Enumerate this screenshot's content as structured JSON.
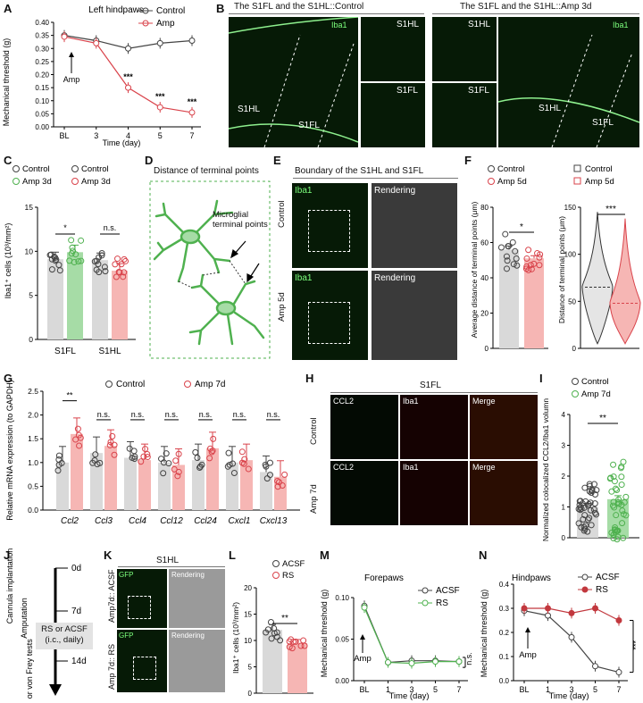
{
  "panels": {
    "A": "A",
    "B": "B",
    "C": "C",
    "D": "D",
    "E": "E",
    "F": "F",
    "G": "G",
    "H": "H",
    "I": "I",
    "J": "J",
    "K": "K",
    "L": "L",
    "M": "M",
    "N": "N"
  },
  "colors": {
    "control": "#444444",
    "amp": "#d9434b",
    "amp_light": "#f6b6b4",
    "green": "#4fb14f",
    "green_light": "#a6dca6",
    "grey_bar": "#d9d9d9"
  },
  "A": {
    "title": "Left hindpaws",
    "ylabel": "Mechanical threshold (g)",
    "xlabel": "Time (day)",
    "legend": [
      "Control",
      "Amp"
    ],
    "arrow_label": "Amp",
    "sig": [
      "***",
      "***",
      "***"
    ],
    "chart_data": {
      "type": "line",
      "categories": [
        "BL",
        "3",
        "4",
        "5",
        "7"
      ],
      "ylim": [
        0,
        0.4
      ],
      "yticks": [
        "0.00",
        "0.05",
        "0.10",
        "0.15",
        "0.20",
        "0.25",
        "0.30",
        "0.35",
        "0.40"
      ],
      "series": [
        {
          "name": "Control",
          "values": [
            0.35,
            0.33,
            0.3,
            0.32,
            0.33
          ]
        },
        {
          "name": "Amp",
          "values": [
            0.345,
            0.32,
            0.15,
            0.075,
            0.055
          ]
        }
      ]
    }
  },
  "B": {
    "title_left": "The S1FL and  the S1HL::Control",
    "title_right": "The S1FL and  the S1HL::Amp 3d",
    "iba1": "Iba1",
    "s1hl": "S1HL",
    "s1fl": "S1FL"
  },
  "C": {
    "legend": [
      "Control",
      "Amp 3d",
      "Control",
      "Amp 3d"
    ],
    "ylabel": "Iba1⁺ cells (10³/mm²)",
    "sig": [
      "*",
      "n.s."
    ],
    "chart_data": {
      "type": "bar",
      "categories": [
        "S1FL",
        "S1HL"
      ],
      "ylim": [
        0,
        15
      ],
      "yticks": [
        "0",
        "5",
        "10",
        "15"
      ],
      "series": [
        {
          "name": "Control",
          "values": [
            9.1,
            9.0
          ]
        },
        {
          "name": "Amp 3d",
          "values": [
            9.9,
            7.8
          ]
        }
      ]
    }
  },
  "D": {
    "title": "Distance of terminal points",
    "label": "Microglial terminal points"
  },
  "E": {
    "title": "Boundary of the S1HL and S1FL",
    "rows": [
      "Control",
      "Amp 5d"
    ],
    "iba1": "Iba1",
    "rendering": "Rendering"
  },
  "F": {
    "legend_left": [
      "Control",
      "Amp 5d"
    ],
    "legend_right": [
      "Control",
      "Amp 5d"
    ],
    "ylabel_left": "Average distance of terminal points (μm)",
    "ylabel_right": "Distance of terminal points (μm)",
    "sig_left": "*",
    "sig_right": "***",
    "chart_data": [
      {
        "type": "bar",
        "categories": [
          "Control",
          "Amp 5d"
        ],
        "values": [
          56,
          51
        ],
        "ylim": [
          0,
          80
        ],
        "yticks": [
          "0",
          "20",
          "40",
          "60",
          "80"
        ]
      },
      {
        "type": "violin",
        "categories": [
          "Control",
          "Amp 5d"
        ],
        "median": [
          65,
          48
        ],
        "ylim": [
          0,
          150
        ],
        "yticks": [
          "0",
          "50",
          "100",
          "150"
        ]
      }
    ]
  },
  "G": {
    "legend": [
      "Control",
      "Amp 7d"
    ],
    "ylabel": "Relative mRNA expression (to GAPDH)",
    "sig": [
      "**",
      "n.s.",
      "n.s.",
      "n.s.",
      "n.s.",
      "n.s.",
      "n.s."
    ],
    "chart_data": {
      "type": "bar",
      "categories": [
        "Ccl2",
        "Ccl3",
        "Ccl4",
        "Ccl12",
        "Ccl24",
        "Cxcl1",
        "Cxcl13"
      ],
      "ylim": [
        0,
        2.5
      ],
      "yticks": [
        "0.0",
        "0.5",
        "1.0",
        "1.5",
        "2.0",
        "2.5"
      ],
      "series": [
        {
          "name": "Control",
          "values": [
            1.0,
            1.2,
            1.1,
            1.0,
            1.05,
            1.0,
            0.8
          ]
        },
        {
          "name": "Amp 7d",
          "values": [
            1.6,
            1.35,
            1.05,
            0.95,
            1.3,
            1.05,
            0.7
          ]
        }
      ]
    }
  },
  "H": {
    "title": "S1FL",
    "rows": [
      "Control",
      "Amp 7d"
    ],
    "cols": [
      "CCL2",
      "Iba1",
      "Merge"
    ]
  },
  "I": {
    "legend": [
      "Control",
      "Amp 7d"
    ],
    "ylabel": "Normalized colocalized CCL2/Iba1 volumn",
    "sig": "**",
    "chart_data": {
      "type": "bar",
      "categories": [
        "Control",
        "Amp 7d"
      ],
      "values": [
        1.0,
        1.25
      ],
      "ylim": [
        0,
        4
      ],
      "yticks": [
        "0",
        "1",
        "2",
        "3",
        "4"
      ]
    }
  },
  "J": {
    "labels": [
      "0d",
      "7d",
      "14d"
    ],
    "events": [
      "Cannula implantation",
      "Amputation",
      "IF or von Frey tests"
    ],
    "box": "RS or ACSF (i.c., daily)"
  },
  "K": {
    "title": "S1HL",
    "rows": [
      "Amp7d:: ACSF",
      "Amp 7d:: RS"
    ],
    "gfp": "GFP",
    "rendering": "Rendering"
  },
  "L": {
    "legend": [
      "ACSF",
      "RS"
    ],
    "ylabel": "Iba1⁺ cells (10³/mm²)",
    "sig": "**",
    "chart_data": {
      "type": "bar",
      "categories": [
        "ACSF",
        "RS"
      ],
      "values": [
        12.0,
        9.5
      ],
      "ylim": [
        0,
        20
      ],
      "yticks": [
        "0",
        "5",
        "10",
        "15",
        "20"
      ]
    }
  },
  "M": {
    "title": "Forepaws",
    "ylabel": "Mechanical threshold (g)",
    "xlabel": "Time (day)",
    "legend": [
      "ACSF",
      "RS"
    ],
    "arrow_label": "Amp",
    "sig": "n.s.",
    "chart_data": {
      "type": "line",
      "categories": [
        "BL",
        "1",
        "3",
        "5",
        "7"
      ],
      "ylim": [
        0,
        0.1
      ],
      "yticks": [
        "0.00",
        "0.05",
        "0.10"
      ],
      "series": [
        {
          "name": "ACSF",
          "values": [
            0.09,
            0.022,
            0.024,
            0.024,
            0.023
          ]
        },
        {
          "name": "RS",
          "values": [
            0.088,
            0.022,
            0.021,
            0.023,
            0.023
          ]
        }
      ]
    }
  },
  "N": {
    "title": "Hindpaws",
    "ylabel": "Mechanical threshold (g)",
    "xlabel": "Time (day)",
    "legend": [
      "ACSF",
      "RS"
    ],
    "arrow_label": "Amp",
    "sig": "***",
    "chart_data": {
      "type": "line",
      "categories": [
        "BL",
        "1",
        "3",
        "5",
        "7"
      ],
      "ylim": [
        0,
        0.4
      ],
      "yticks": [
        "0.0",
        "0.1",
        "0.2",
        "0.3",
        "0.4"
      ],
      "series": [
        {
          "name": "ACSF",
          "values": [
            0.29,
            0.27,
            0.18,
            0.06,
            0.035
          ]
        },
        {
          "name": "RS",
          "values": [
            0.3,
            0.3,
            0.28,
            0.3,
            0.25
          ]
        }
      ]
    }
  }
}
